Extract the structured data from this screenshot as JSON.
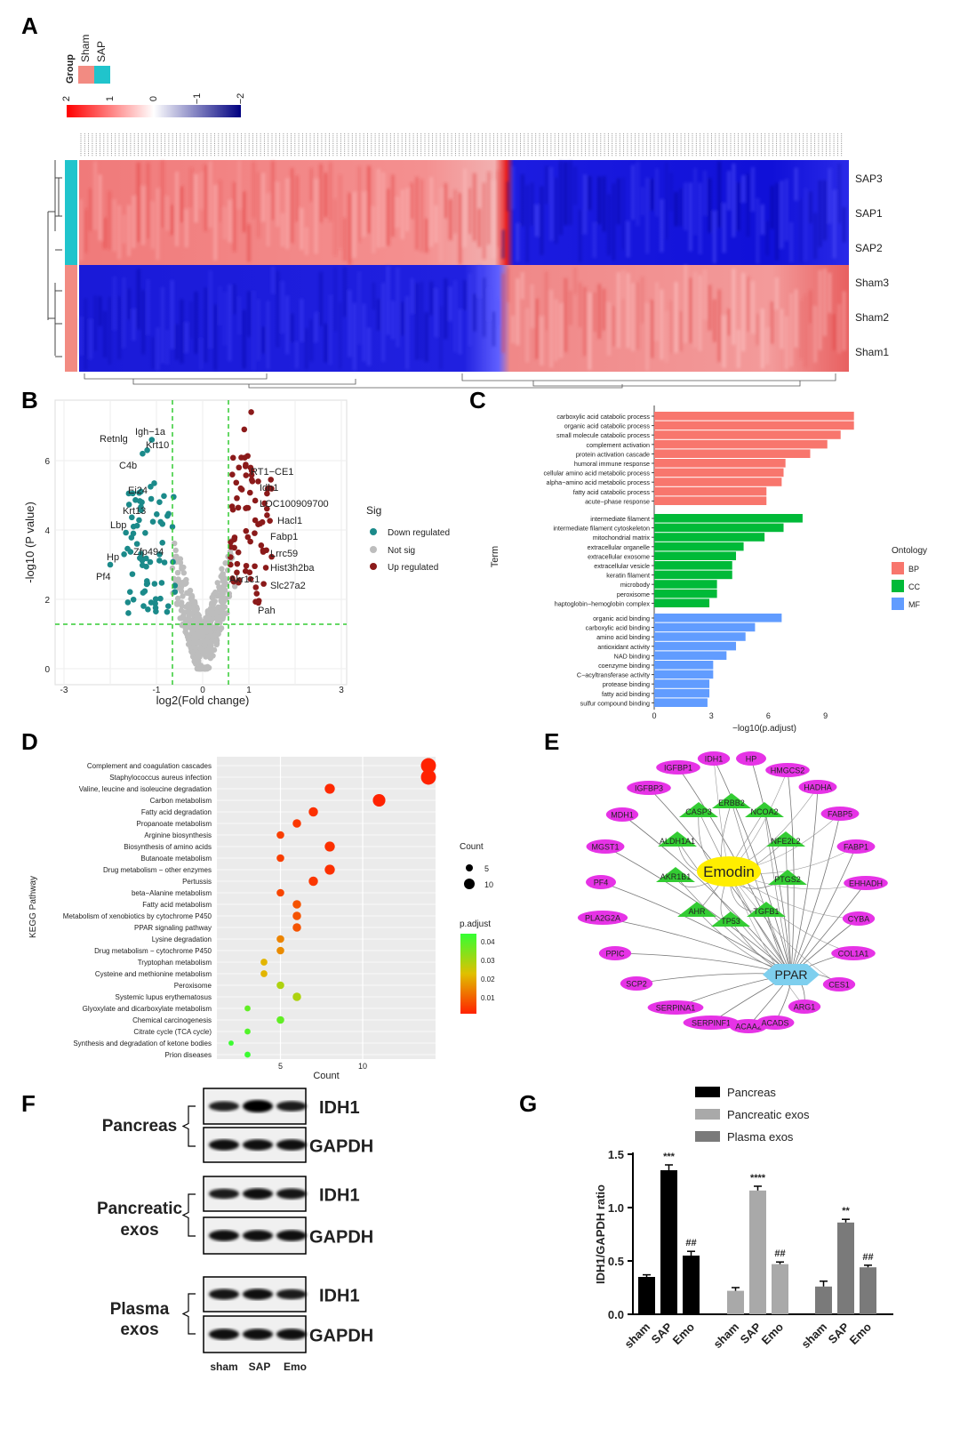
{
  "panels": {
    "A": {
      "letter": "A",
      "legend_title": "Group",
      "legend_groups": [
        {
          "name": "Sham",
          "color": "#f28b82"
        },
        {
          "name": "SAP",
          "color": "#20c4cc"
        }
      ],
      "scale_ticks": [
        "2",
        "1",
        "0",
        "−1",
        "−2"
      ],
      "rows": [
        "SAP3",
        "SAP1",
        "SAP2",
        "Sham3",
        "Sham2",
        "Sham1"
      ]
    },
    "B": {
      "letter": "B",
      "xlabel": "log2(Fold change)",
      "ylabel": "-log10 (P value)",
      "legend_title": "Sig",
      "legend": [
        "Down regulated",
        "Not sig",
        "Up regulated"
      ],
      "xticks": [
        "-3",
        "-1",
        "0",
        "1",
        "3"
      ],
      "yticks": [
        "0",
        "2",
        "4",
        "6"
      ],
      "down_genes": [
        "Retnlg",
        "Igh−1a",
        "C4b",
        "Krt10",
        "Ei24",
        "Krt13",
        "Lbp",
        "Zfp494",
        "Hp",
        "Pf4"
      ],
      "up_genes": [
        "RT1−CE1",
        "Idh1",
        "LOC100909700",
        "Hacl1",
        "Fabp1",
        "Lrrc59",
        "Hist3h2ba",
        "Akr1c1",
        "Slc27a2",
        "Pah"
      ]
    },
    "C": {
      "letter": "C",
      "ylabel": "Term",
      "xlabel": "−log10(p.adjust)",
      "xticks": [
        "0",
        "3",
        "6",
        "9"
      ],
      "legend_title": "Ontology",
      "legend": [
        {
          "name": "BP",
          "color": "#f8766d"
        },
        {
          "name": "CC",
          "color": "#00ba38"
        },
        {
          "name": "MF",
          "color": "#619cff"
        }
      ]
    },
    "D": {
      "letter": "D",
      "ylabel": "KEGG Pathway",
      "xlabel": "Count",
      "xticks": [
        "5",
        "10"
      ],
      "count_legend_title": "Count",
      "count_legend": [
        "5",
        "10"
      ],
      "padj_legend_title": "p.adjust",
      "padj_ticks": [
        "0.04",
        "0.03",
        "0.02",
        "0.01"
      ]
    },
    "E": {
      "letter": "E",
      "center": "Emodin",
      "hub": "PPAR",
      "green_nodes": [
        "ERBB2",
        "CASP3",
        "NCOA2",
        "ALDH1A1",
        "NFE2L2",
        "AKR1B1",
        "PTGS2",
        "AHR",
        "TP53",
        "TGFB1"
      ],
      "pink_nodes": [
        "IDH1",
        "HP",
        "HMGCS2",
        "IGFBP1",
        "HADHA",
        "IGFBP3",
        "FABP5",
        "MDH1",
        "FABP1",
        "MGST1",
        "EHHADH",
        "PF4",
        "CYBA",
        "PLA2G2A",
        "COL1A1",
        "PPIC",
        "CES1",
        "SCP2",
        "ARG1",
        "SERPINA1",
        "SERPINF1",
        "ACAA2",
        "ACADS"
      ]
    },
    "F": {
      "letter": "F",
      "groups": [
        "Pancreas",
        "Pancreatic\nexos",
        "Plasma\nexos"
      ],
      "bands": [
        "IDH1",
        "GAPDH"
      ],
      "lanes": [
        "sham",
        "SAP",
        "Emo"
      ]
    },
    "G": {
      "letter": "G",
      "ylabel": "IDH1/GAPDH ratio",
      "yticks": [
        "0.0",
        "0.5",
        "1.0",
        "1.5"
      ],
      "legend": [
        {
          "name": "Pancreas",
          "color": "#000000"
        },
        {
          "name": "Pancreatic exos",
          "color": "#a9a9a9"
        },
        {
          "name": "Plasma exos",
          "color": "#7a7a7a"
        }
      ],
      "categories": [
        "sham",
        "SAP",
        "Emo"
      ],
      "sig_labels": [
        "***",
        "##",
        "****",
        "##",
        "**",
        "##"
      ]
    }
  },
  "chart_data": [
    {
      "type": "bar",
      "panel": "G",
      "ylabel": "IDH1/GAPDH ratio",
      "ylim": [
        0,
        1.5
      ],
      "categories": [
        "sham",
        "SAP",
        "Emo"
      ],
      "series": [
        {
          "name": "Pancreas",
          "values": [
            0.35,
            1.35,
            0.55
          ],
          "errors": [
            0.02,
            0.05,
            0.04
          ],
          "sig": [
            "",
            "***",
            "##"
          ]
        },
        {
          "name": "Pancreatic exos",
          "values": [
            0.22,
            1.16,
            0.47
          ],
          "errors": [
            0.03,
            0.04,
            0.02
          ],
          "sig": [
            "",
            "****",
            "##"
          ]
        },
        {
          "name": "Plasma exos",
          "values": [
            0.26,
            0.86,
            0.44
          ],
          "errors": [
            0.05,
            0.03,
            0.02
          ],
          "sig": [
            "",
            "**",
            "##"
          ]
        }
      ]
    },
    {
      "type": "bar",
      "panel": "C",
      "xlabel": "−log10(p.adjust)",
      "xlim": [
        0,
        10.5
      ],
      "series": [
        {
          "name": "BP",
          "categories": [
            "carboxylic acid catabolic process",
            "organic acid catabolic process",
            "small molecule catabolic process",
            "complement activation",
            "protein activation cascade",
            "humoral immune response",
            "cellular amino acid metabolic process",
            "alpha−amino acid metabolic process",
            "fatty acid catabolic process",
            "acute−phase response"
          ],
          "values": [
            10.5,
            10.5,
            9.8,
            9.1,
            8.2,
            6.9,
            6.8,
            6.7,
            5.9,
            5.9
          ]
        },
        {
          "name": "CC",
          "categories": [
            "intermediate filament",
            "intermediate filament cytoskeleton",
            "mitochondrial matrix",
            "extracellular organelle",
            "extracellular exosome",
            "extracellular vesicle",
            "keratin filament",
            "microbody",
            "peroxisome",
            "haptoglobin−hemoglobin complex"
          ],
          "values": [
            7.8,
            6.8,
            5.8,
            4.7,
            4.3,
            4.1,
            4.1,
            3.3,
            3.3,
            2.9
          ]
        },
        {
          "name": "MF",
          "categories": [
            "organic acid binding",
            "carboxylic acid binding",
            "amino acid binding",
            "antioxidant activity",
            "NAD binding",
            "coenzyme binding",
            "C−acyltransferase activity",
            "protease binding",
            "fatty acid binding",
            "sulfur compound binding"
          ],
          "values": [
            6.7,
            5.3,
            4.8,
            4.3,
            3.8,
            3.1,
            3.1,
            2.9,
            2.9,
            2.8
          ]
        }
      ]
    },
    {
      "type": "scatter",
      "panel": "D",
      "xlabel": "Count",
      "ylabel": "KEGG Pathway",
      "categories": [
        "Complement and coagulation cascades",
        "Staphylococcus aureus infection",
        "Valine, leucine and isoleucine degradation",
        "Carbon metabolism",
        "Fatty acid degradation",
        "Propanoate metabolism",
        "Arginine biosynthesis",
        "Biosynthesis of amino acids",
        "Butanoate metabolism",
        "Drug metabolism − other enzymes",
        "Pertussis",
        "beta−Alanine metabolism",
        "Fatty acid metabolism",
        "Metabolism of xenobiotics by cytochrome P450",
        "PPAR signaling pathway",
        "Lysine degradation",
        "Drug metabolism − cytochrome P450",
        "Tryptophan metabolism",
        "Cysteine and methionine metabolism",
        "Peroxisome",
        "Systemic lupus erythematosus",
        "Glyoxylate and dicarboxylate metabolism",
        "Chemical carcinogenesis",
        "Citrate cycle (TCA cycle)",
        "Synthesis and degradation of ketone bodies",
        "Prion diseases"
      ],
      "counts": [
        14,
        14,
        8,
        11,
        7,
        6,
        5,
        8,
        5,
        8,
        7,
        5,
        6,
        6,
        6,
        5,
        5,
        4,
        4,
        5,
        6,
        3,
        5,
        3,
        2,
        3
      ],
      "p_adjust": [
        0.001,
        0.001,
        0.002,
        0.001,
        0.003,
        0.004,
        0.005,
        0.003,
        0.005,
        0.003,
        0.004,
        0.006,
        0.008,
        0.008,
        0.008,
        0.015,
        0.016,
        0.022,
        0.022,
        0.03,
        0.03,
        0.04,
        0.04,
        0.042,
        0.045,
        0.045
      ]
    }
  ]
}
